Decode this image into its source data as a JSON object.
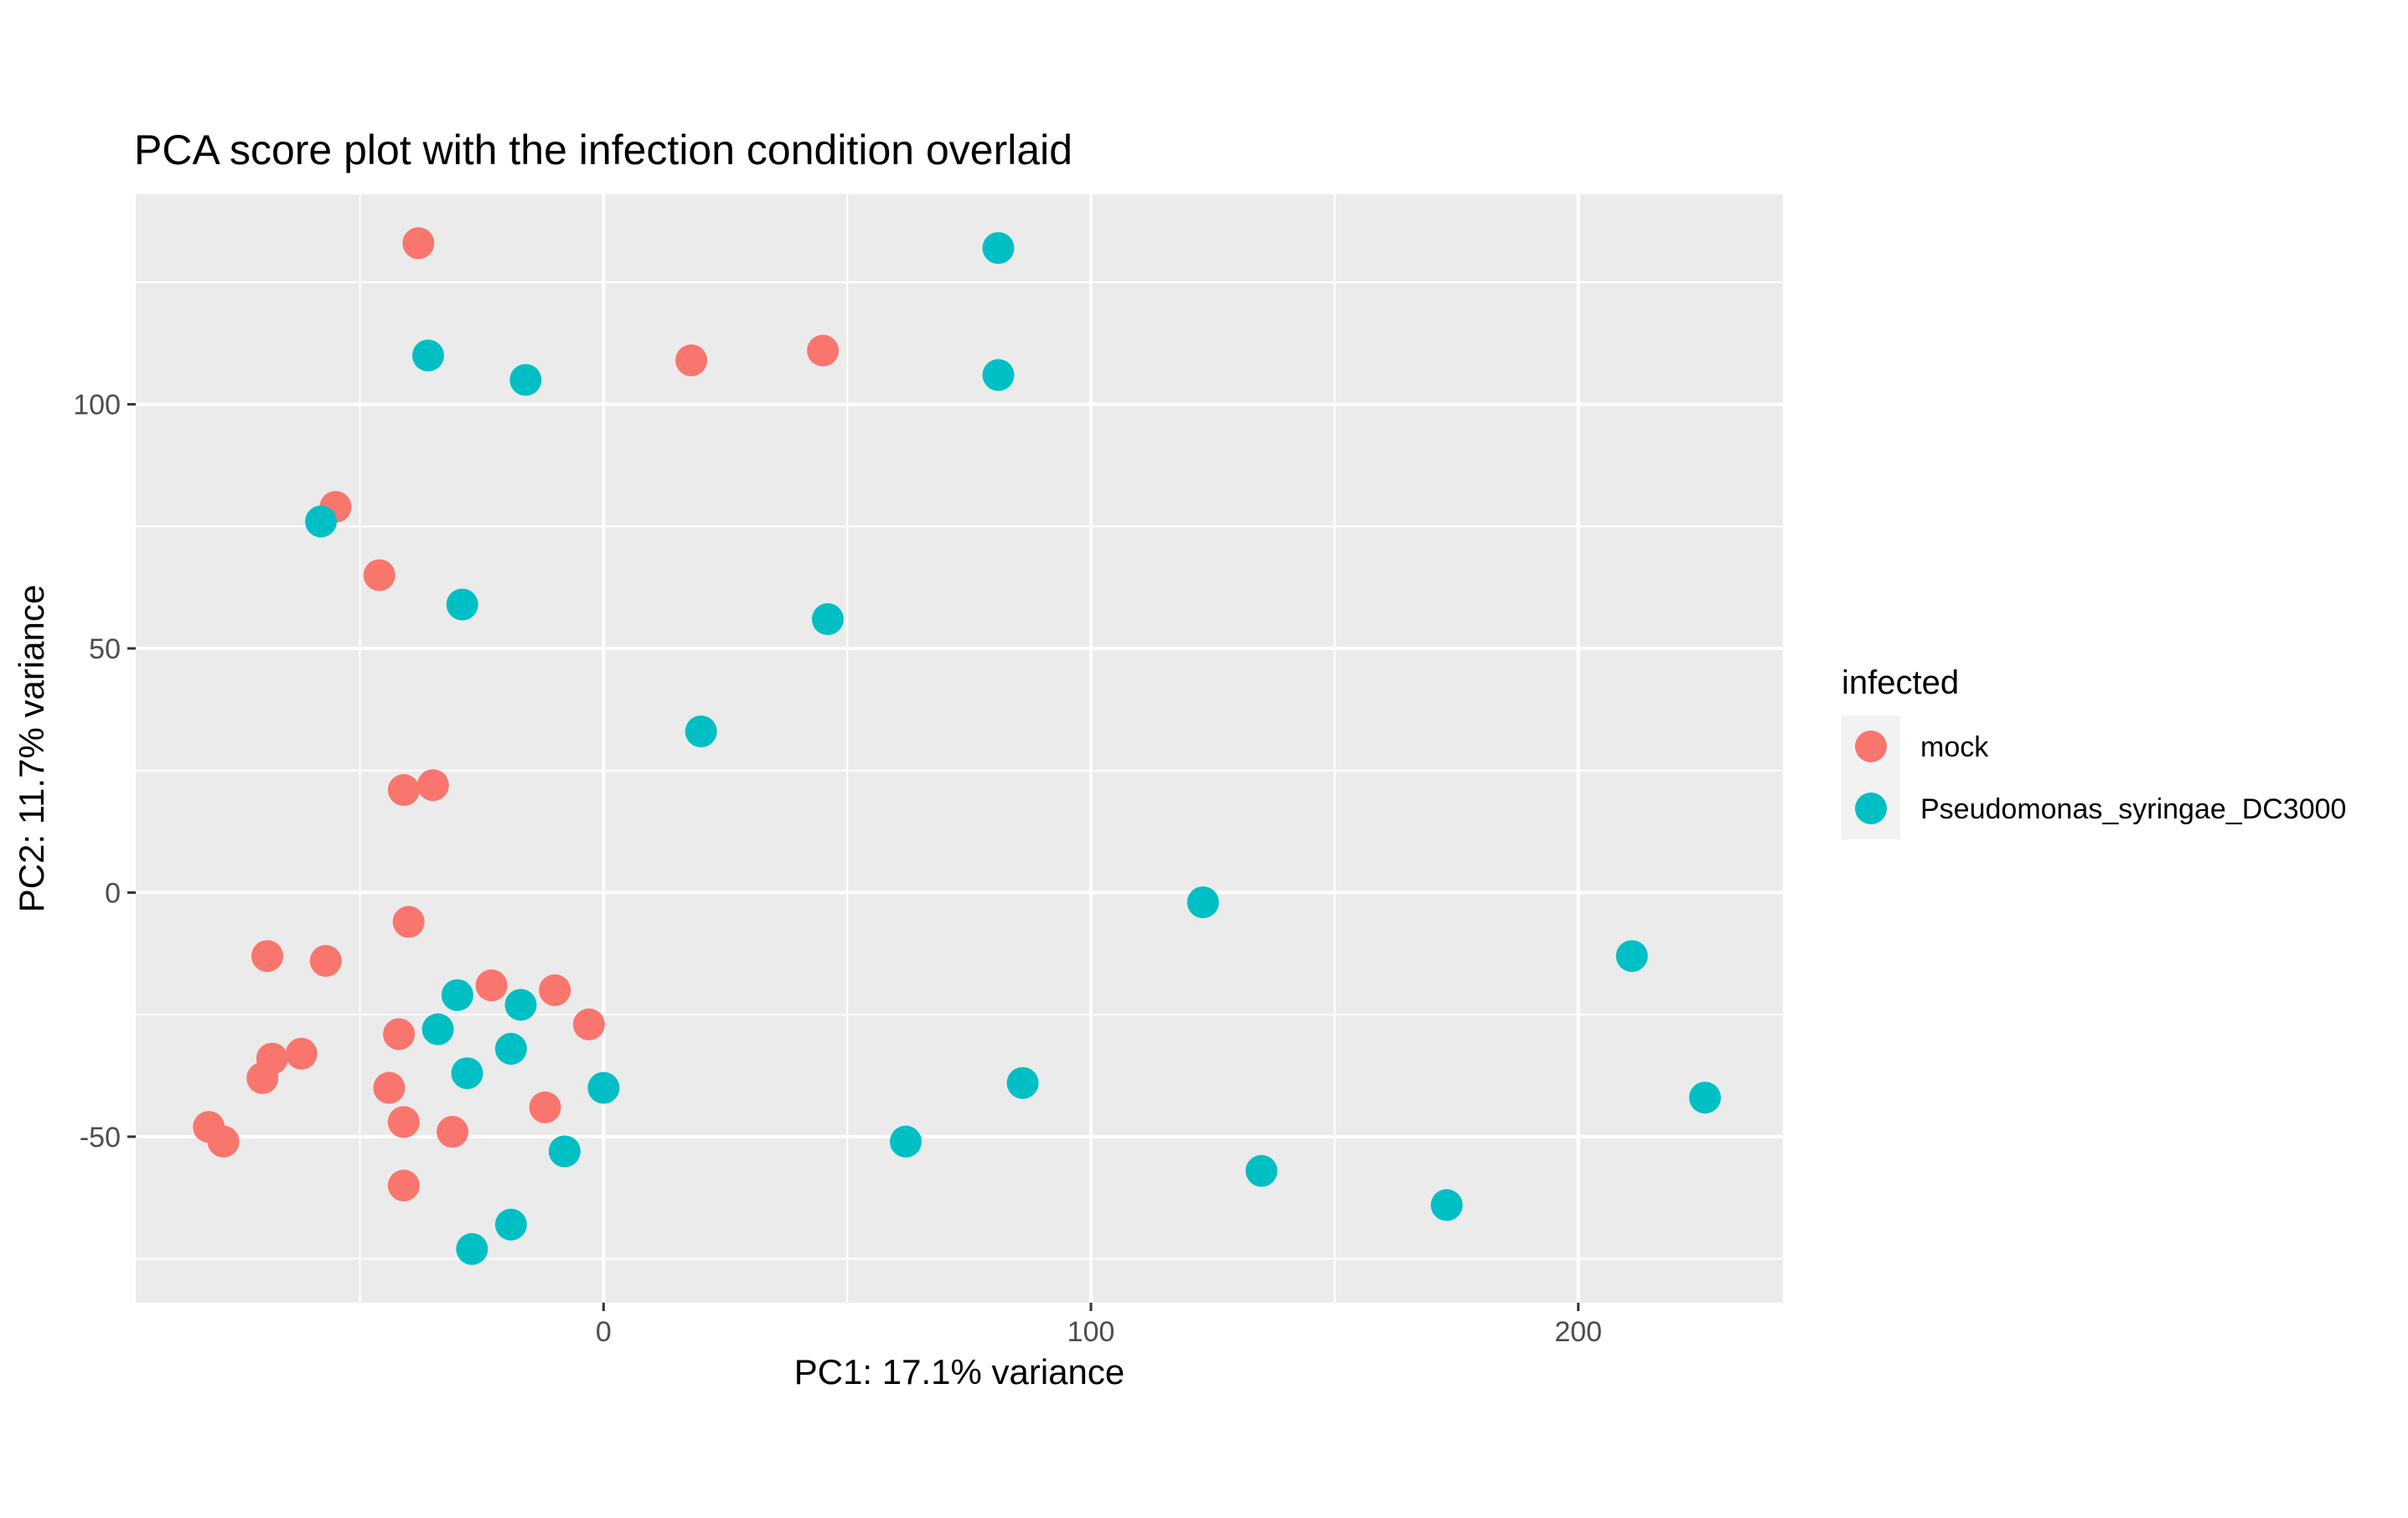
{
  "chart_data": {
    "type": "scatter",
    "title": "PCA score plot with the infection condition overlaid",
    "xlabel": "PC1: 17.1% variance",
    "ylabel": "PC2: 11.7% variance",
    "xlim": [
      -96,
      242
    ],
    "ylim": [
      -84,
      143
    ],
    "xticks": [
      0,
      100,
      200
    ],
    "xtick_labels": [
      "0",
      "100",
      "200"
    ],
    "yticks": [
      -50,
      0,
      50,
      100
    ],
    "ytick_labels": [
      "-50",
      "0",
      "50",
      "100"
    ],
    "grid": true,
    "legend": {
      "title": "infected",
      "placement": "right"
    },
    "colors": {
      "mock": "#F8766D",
      "Pseudomonas_syringae_DC3000": "#00BFC4",
      "panel": "#EBEBEB",
      "grid": "#FFFFFF"
    },
    "series": [
      {
        "name": "mock",
        "color": "#F8766D",
        "points": [
          [
            -38,
            133
          ],
          [
            18,
            109
          ],
          [
            45,
            111
          ],
          [
            -55,
            79
          ],
          [
            -46,
            65
          ],
          [
            -41,
            21
          ],
          [
            -35,
            22
          ],
          [
            -40,
            -6
          ],
          [
            -69,
            -13
          ],
          [
            -57,
            -14
          ],
          [
            -23,
            -19
          ],
          [
            -10,
            -20
          ],
          [
            -3,
            -27
          ],
          [
            -42,
            -29
          ],
          [
            -62,
            -33
          ],
          [
            -68,
            -34
          ],
          [
            -70,
            -38
          ],
          [
            -44,
            -40
          ],
          [
            -12,
            -44
          ],
          [
            -41,
            -47
          ],
          [
            -31,
            -49
          ],
          [
            -81,
            -48
          ],
          [
            -78,
            -51
          ],
          [
            -41,
            -60
          ]
        ]
      },
      {
        "name": "Pseudomonas_syringae_DC3000",
        "color": "#00BFC4",
        "points": [
          [
            81,
            132
          ],
          [
            81,
            106
          ],
          [
            -36,
            110
          ],
          [
            -16,
            105
          ],
          [
            -58,
            76
          ],
          [
            -29,
            59
          ],
          [
            46,
            56
          ],
          [
            20,
            33
          ],
          [
            123,
            -2
          ],
          [
            211,
            -13
          ],
          [
            -30,
            -21
          ],
          [
            -17,
            -23
          ],
          [
            -34,
            -28
          ],
          [
            -19,
            -32
          ],
          [
            -28,
            -37
          ],
          [
            0,
            -40
          ],
          [
            86,
            -39
          ],
          [
            226,
            -42
          ],
          [
            -8,
            -53
          ],
          [
            62,
            -51
          ],
          [
            135,
            -57
          ],
          [
            173,
            -64
          ],
          [
            -19,
            -68
          ],
          [
            -27,
            -73
          ]
        ]
      }
    ]
  }
}
